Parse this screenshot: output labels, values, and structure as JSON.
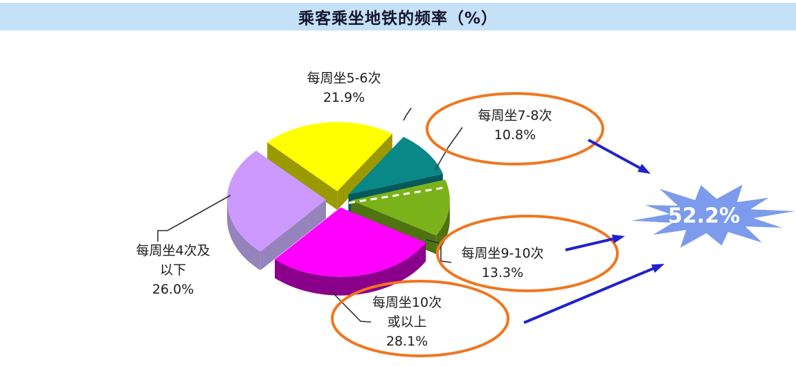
{
  "header": {
    "title": "乘客乘坐地铁的频率（%）"
  },
  "chart_data": {
    "type": "pie",
    "style": "3d-exploded",
    "title": "乘客乘坐地铁的频率（%）",
    "unit": "%",
    "legend_position": "none",
    "slices": [
      {
        "label": "每周坐5-6次",
        "value": 21.9,
        "pct_text": "21.9%",
        "label_lines": [
          "每周坐5-6次"
        ],
        "color": "#FFFF00",
        "side_color": "#9A9A00",
        "circled": false
      },
      {
        "label": "每周坐7-8次",
        "value": 10.8,
        "pct_text": "10.8%",
        "label_lines": [
          "每周坐7-8次"
        ],
        "color": "#0A8787",
        "side_color": "#035A5A",
        "circled": true
      },
      {
        "label": "每周坐9-10次",
        "value": 13.3,
        "pct_text": "13.3%",
        "label_lines": [
          "每周坐9-10次"
        ],
        "color": "#7BB21A",
        "side_color": "#4F7311",
        "circled": true
      },
      {
        "label": "每周坐10次或以上",
        "value": 28.1,
        "pct_text": "28.1%",
        "label_lines": [
          "每周坐10次",
          "或以上"
        ],
        "color": "#FF00FF",
        "side_color": "#8A008A",
        "circled": true
      },
      {
        "label": "每周坐4次及以下",
        "value": 26.0,
        "pct_text": "26.0%",
        "label_lines": [
          "每周坐4次及",
          "以下"
        ],
        "color": "#CC99FF",
        "side_color": "#9583BB",
        "circled": false
      }
    ],
    "annotation": {
      "star_text": "52.2%",
      "star_fill": "#7D9BEC",
      "star_text_color": "#FFFFFF",
      "arrow_color": "#2121CC",
      "circle_color": "#F0761F"
    },
    "colors": {
      "title_bar_bg": "#C5E1F8",
      "background": "#FFFFFF",
      "label_text": "#1C1C1C"
    }
  }
}
